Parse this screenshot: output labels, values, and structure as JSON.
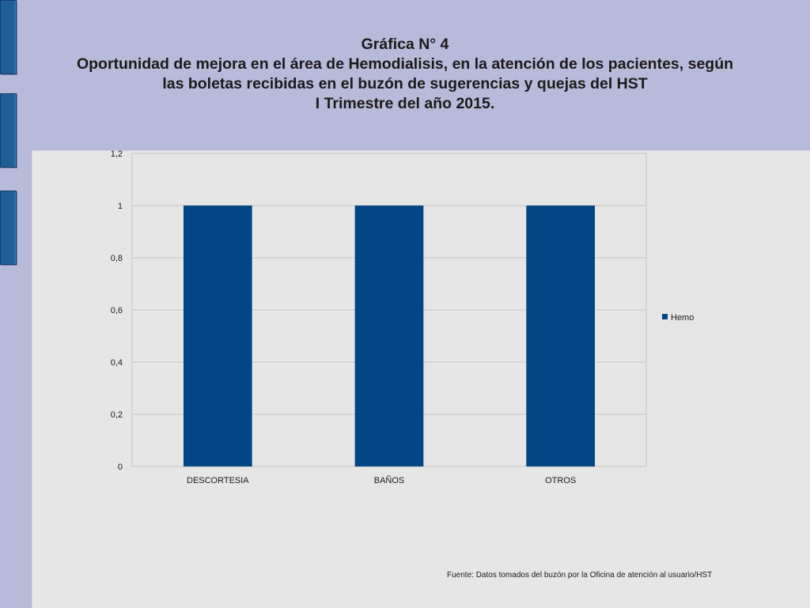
{
  "slide": {
    "title_lines": [
      "Gráfica N° 4",
      "Oportunidad de mejora en el área de Hemodialisis, en la atención de los pacientes,  según",
      "las boletas recibidas en el buzón  de sugerencias y quejas del HST",
      "I Trimestre del año 2015."
    ],
    "source": "Fuente: Datos tomados del buzón por la Oficina de atención al usuario/HST"
  },
  "colors": {
    "bar": "#004586",
    "panel": "#e6e6e6",
    "background": "#b8bad9",
    "grid": "#c4c4c4"
  },
  "chart_data": {
    "type": "bar",
    "title": "Gráfica N° 4",
    "categories": [
      "DESCORTESIA",
      "BAÑOS",
      "OTROS"
    ],
    "series": [
      {
        "name": "Hemo",
        "values": [
          1,
          1,
          1
        ]
      }
    ],
    "ylim": [
      0,
      1.2
    ],
    "yticks": [
      0,
      0.2,
      0.4,
      0.6,
      0.8,
      1,
      1.2
    ],
    "ytick_labels": [
      "0",
      "0,2",
      "0,4",
      "0,6",
      "0,8",
      "1",
      "1,2"
    ],
    "xlabel": "",
    "ylabel": "",
    "grid": true,
    "legend": "right"
  }
}
